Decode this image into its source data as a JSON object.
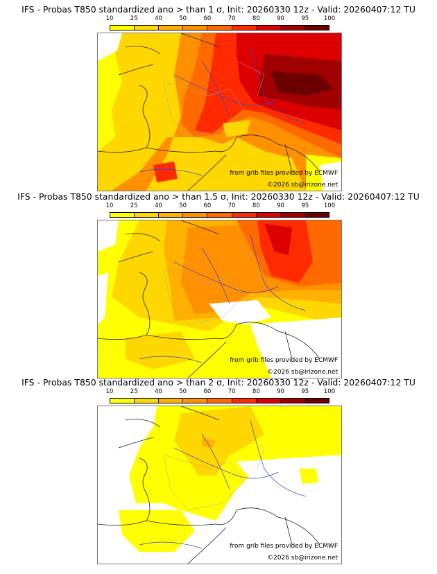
{
  "colorbar": {
    "ticks": [
      "10",
      "25",
      "40",
      "50",
      "60",
      "70",
      "80",
      "90",
      "95",
      "100"
    ],
    "colors": [
      "#ffff00",
      "#ffd700",
      "#ffb000",
      "#ff9000",
      "#ff6a00",
      "#ff2a00",
      "#dd0000",
      "#a00000",
      "#6a0000"
    ]
  },
  "panels": [
    {
      "title": "IFS - Probas T850  standardized ano > than 1 σ, Init: 20260330 12z - Valid: 20260407:12 TU",
      "source_credit": "from grib files provided by ECMWF",
      "copyright": "©2026 sb@irizone.net"
    },
    {
      "title": "IFS - Probas T850  standardized ano > than 1.5 σ, Init: 20260330 12z - Valid: 20260407:12 TU",
      "source_credit": "from grib files provided by ECMWF",
      "copyright": "©2026 sb@irizone.net"
    },
    {
      "title": "IFS - Probas T850  standardized ano > than 2 σ, Init: 20260330 12z - Valid: 20260407:12 TU",
      "source_credit": "from grib files provided by ECMWF",
      "copyright": "©2026 sb@irizone.net"
    }
  ]
}
